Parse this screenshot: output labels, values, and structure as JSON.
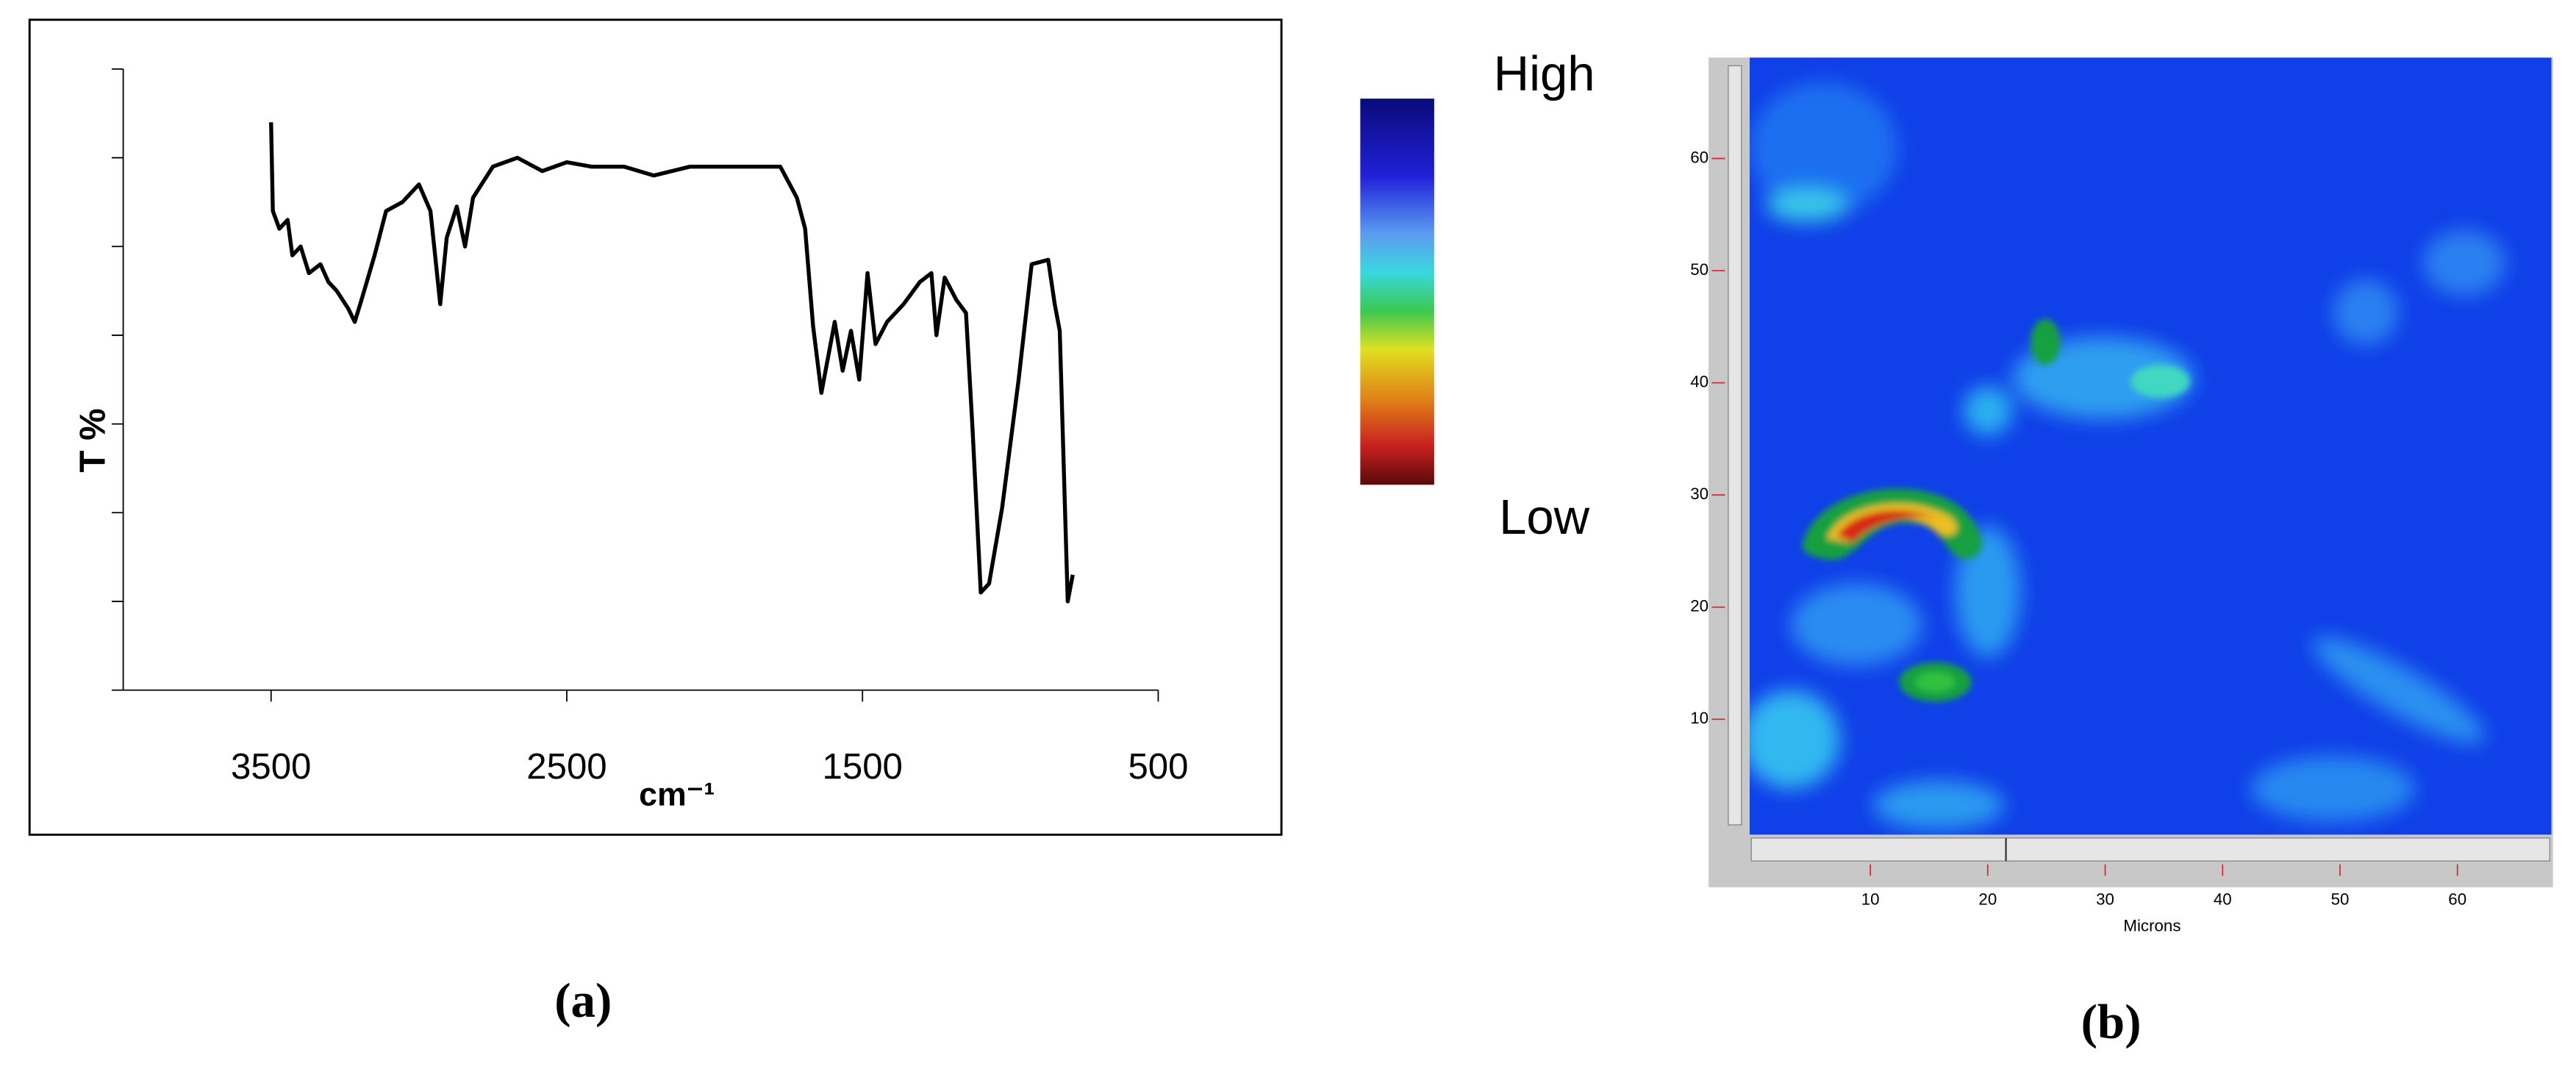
{
  "chart_data": [
    {
      "type": "line",
      "ylabel": "T %",
      "xlabel": "cm⁻¹",
      "panel_label": "(a)",
      "x": [
        3500,
        3494,
        3472,
        3444,
        3428,
        3400,
        3372,
        3333,
        3306,
        3278,
        3239,
        3217,
        3194,
        3150,
        3111,
        3056,
        3000,
        2961,
        2928,
        2906,
        2872,
        2844,
        2817,
        2750,
        2667,
        2583,
        2500,
        2417,
        2306,
        2206,
        2083,
        1917,
        1778,
        1722,
        1694,
        1667,
        1639,
        1594,
        1567,
        1539,
        1511,
        1483,
        1456,
        1417,
        1361,
        1306,
        1267,
        1250,
        1222,
        1183,
        1150,
        1128,
        1100,
        1072,
        1028,
        972,
        928,
        872,
        850,
        833,
        806,
        789
      ],
      "series": [
        {
          "color": "#000000",
          "values": [
            6.4,
            5.4,
            5.2,
            5.3,
            4.9,
            5.0,
            4.7,
            4.8,
            4.6,
            4.5,
            4.3,
            4.15,
            4.4,
            4.9,
            5.4,
            5.5,
            5.7,
            5.4,
            4.35,
            5.1,
            5.45,
            5.0,
            5.55,
            5.9,
            6.0,
            5.85,
            5.95,
            5.9,
            5.9,
            5.8,
            5.9,
            5.9,
            5.9,
            5.55,
            5.2,
            4.1,
            3.35,
            4.15,
            3.6,
            4.05,
            3.5,
            4.7,
            3.9,
            4.15,
            4.35,
            4.6,
            4.7,
            4.0,
            4.65,
            4.4,
            4.25,
            2.95,
            1.1,
            1.2,
            2.05,
            3.5,
            4.8,
            4.85,
            4.35,
            4.05,
            1.0,
            1.3
          ]
        }
      ],
      "xlim": [
        4000,
        500
      ],
      "xticks": [
        3500,
        2500,
        1500,
        500
      ],
      "ylim": [
        0,
        7
      ],
      "yticks": [
        0,
        1,
        2,
        3,
        4,
        5,
        6,
        7
      ]
    },
    {
      "type": "image",
      "colorbar_labels": [
        "High",
        "Low"
      ],
      "xlabel": "Microns",
      "panel_label": "(b)",
      "xlim": [
        0,
        68
      ],
      "xticks": [
        10,
        20,
        30,
        40,
        50,
        60
      ],
      "ylim": [
        0,
        69
      ],
      "yticks": [
        10,
        20,
        30,
        40,
        50,
        60
      ]
    }
  ]
}
